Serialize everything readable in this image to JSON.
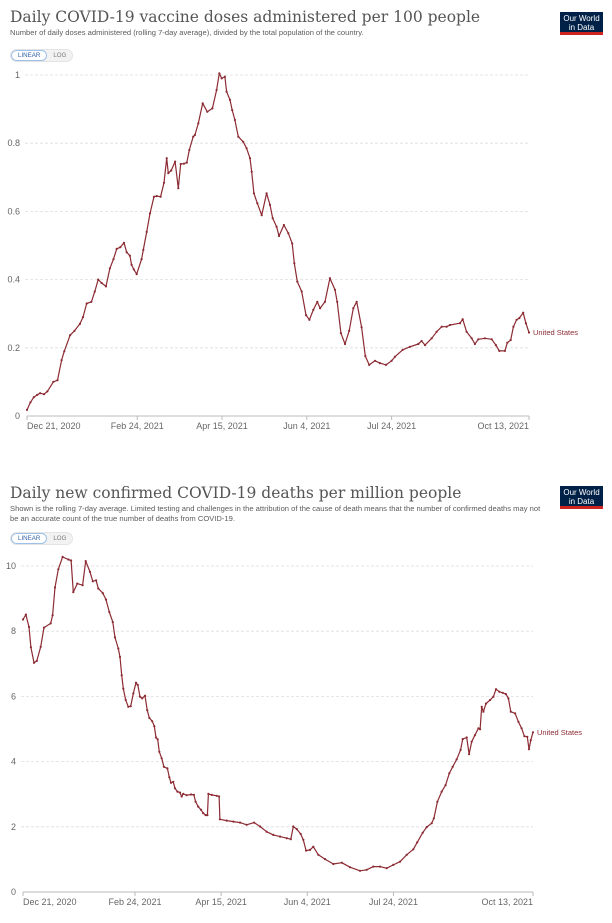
{
  "logo_text": [
    "Our World",
    "in Data"
  ],
  "toggle": {
    "linear": "LINEAR",
    "log": "LOG",
    "selected": "LINEAR"
  },
  "colors": {
    "series": "#8c2b33",
    "logo_bg": "#002147",
    "logo_stripe": "#ce261e",
    "toggle_active": "#3360a9"
  },
  "panels": [
    {
      "title": "Daily COVID-19 vaccine doses administered per 100 people",
      "subtitle": "Number of daily doses administered (rolling 7-day average), divided by the total population of the country."
    },
    {
      "title": "Daily new confirmed COVID-19 deaths per million people",
      "subtitle": "Shown is the rolling 7-day average. Limited testing and challenges in the attribution of the cause of death means that the number of confirmed deaths may not be an accurate count of the true number of deaths from COVID-19."
    }
  ],
  "chart_data": [
    {
      "type": "line",
      "title": "Daily COVID-19 vaccine doses administered per 100 people",
      "xlabel": "",
      "ylabel": "",
      "x_unit": "days since Dec 21, 2020",
      "x_range": [
        0,
        296
      ],
      "ylim": [
        0,
        1
      ],
      "yticks": [
        0,
        0.2,
        0.4,
        0.6,
        0.8,
        1
      ],
      "ytick_labels": [
        "0",
        "0.2",
        "0.4",
        "0.6",
        "0.8",
        "1"
      ],
      "xticks": [
        0,
        65,
        115,
        165,
        215,
        296
      ],
      "xtick_labels": [
        "Dec 21, 2020",
        "Feb 24, 2021",
        "Apr 15, 2021",
        "Jun 4, 2021",
        "Jul 24, 2021",
        "Oct 13, 2021"
      ],
      "grid": true,
      "legend": "end-of-line label",
      "series": [
        {
          "name": "United States",
          "x": [
            0,
            2,
            4,
            6,
            7.7,
            10,
            12,
            15.5,
            18,
            20.4,
            22,
            25.4,
            28,
            31.2,
            33,
            35.2,
            38,
            40,
            42,
            44,
            46.6,
            48.9,
            51,
            52.9,
            55,
            57.2,
            58.8,
            60.7,
            61.7,
            63,
            64.7,
            67.6,
            68.6,
            70.6,
            72.5,
            74.9,
            76.5,
            78.8,
            80.8,
            82.4,
            83.3,
            85,
            87.3,
            89.2,
            90.6,
            92.5,
            94.2,
            95.7,
            98,
            99,
            101,
            103.6,
            106.3,
            109.3,
            111.8,
            113.4,
            114.8,
            116.7,
            117.7,
            119.7,
            121,
            122.6,
            124.6,
            127.5,
            129.5,
            131.5,
            132.5,
            133.8,
            135.8,
            138.4,
            141.3,
            143.3,
            144.9,
            147.2,
            148.6,
            151.5,
            154.1,
            156.4,
            157.6,
            159.4,
            162,
            164.5,
            166.5,
            168.8,
            171.2,
            172.8,
            175.7,
            178.6,
            181.6,
            182.9,
            185.1,
            187.5,
            190,
            192.4,
            194.4,
            197.3,
            199.5,
            201.8,
            205.2,
            208.1,
            211.7,
            215,
            217,
            221.5,
            225.8,
            230.7,
            232.7,
            234.7,
            238.6,
            241.5,
            244.5,
            247.4,
            249.4,
            255.3,
            256.9,
            259.2,
            262.2,
            264.1,
            266.1,
            270,
            274,
            276.5,
            278.5,
            281.8,
            283.2,
            285.2,
            286.8,
            288.7,
            290.3,
            292.6,
            294.2,
            296
          ],
          "y": [
            0.018,
            0.04,
            0.055,
            0.062,
            0.067,
            0.064,
            0.072,
            0.1,
            0.105,
            0.164,
            0.19,
            0.237,
            0.25,
            0.27,
            0.29,
            0.33,
            0.335,
            0.365,
            0.4,
            0.39,
            0.38,
            0.433,
            0.46,
            0.49,
            0.495,
            0.508,
            0.48,
            0.47,
            0.443,
            0.43,
            0.416,
            0.46,
            0.487,
            0.54,
            0.594,
            0.643,
            0.645,
            0.643,
            0.684,
            0.756,
            0.712,
            0.72,
            0.746,
            0.668,
            0.739,
            0.74,
            0.743,
            0.78,
            0.819,
            0.824,
            0.858,
            0.917,
            0.892,
            0.902,
            0.956,
            1.005,
            0.99,
            0.995,
            0.951,
            0.927,
            0.897,
            0.868,
            0.819,
            0.804,
            0.785,
            0.756,
            0.716,
            0.653,
            0.624,
            0.589,
            0.653,
            0.619,
            0.58,
            0.555,
            0.528,
            0.56,
            0.536,
            0.506,
            0.448,
            0.394,
            0.365,
            0.296,
            0.282,
            0.311,
            0.335,
            0.316,
            0.335,
            0.404,
            0.37,
            0.335,
            0.243,
            0.211,
            0.25,
            0.316,
            0.335,
            0.26,
            0.176,
            0.15,
            0.162,
            0.155,
            0.15,
            0.162,
            0.174,
            0.194,
            0.203,
            0.211,
            0.22,
            0.208,
            0.228,
            0.247,
            0.262,
            0.262,
            0.267,
            0.272,
            0.284,
            0.247,
            0.228,
            0.211,
            0.225,
            0.228,
            0.225,
            0.208,
            0.191,
            0.191,
            0.215,
            0.223,
            0.262,
            0.282,
            0.287,
            0.303,
            0.272,
            0.245
          ]
        }
      ]
    },
    {
      "type": "line",
      "title": "Daily new confirmed COVID-19 deaths per million people",
      "xlabel": "",
      "ylabel": "",
      "x_unit": "days since Dec 21, 2020",
      "x_range": [
        0,
        296
      ],
      "ylim": [
        0,
        10.3
      ],
      "yticks": [
        0,
        2,
        4,
        6,
        8,
        10
      ],
      "ytick_labels": [
        "0",
        "2",
        "4",
        "6",
        "8",
        "10"
      ],
      "xticks": [
        0,
        65,
        115,
        165,
        215,
        296
      ],
      "xtick_labels": [
        "Dec 21, 2020",
        "Feb 24, 2021",
        "Apr 15, 2021",
        "Jun 4, 2021",
        "Jul 24, 2021",
        "Oct 13, 2021"
      ],
      "grid": true,
      "legend": "end-of-line label",
      "series": [
        {
          "name": "United States",
          "x": [
            0,
            1.7,
            3.5,
            4.6,
            6.4,
            8,
            10.3,
            12.2,
            16.1,
            17.2,
            18.6,
            20.5,
            23,
            26.3,
            27.9,
            29.2,
            31.5,
            34.6,
            36.4,
            38.9,
            40.5,
            42.4,
            43.7,
            46.3,
            48.2,
            50.1,
            52.1,
            53.4,
            55.3,
            56.3,
            57.3,
            58.2,
            59.6,
            61.1,
            62.5,
            64,
            65.6,
            66.6,
            67.9,
            69.2,
            70.8,
            72.1,
            73.3,
            75,
            76.2,
            77.2,
            78.2,
            79.1,
            80.5,
            81.8,
            83.8,
            84.9,
            85.9,
            87.2,
            88.2,
            89.6,
            91.1,
            92.1,
            93,
            95,
            97.5,
            99.2,
            100.2,
            101.7,
            103.3,
            104.6,
            106,
            107,
            107.6,
            109.5,
            112.4,
            113.8,
            114.3,
            118.2,
            122.1,
            126,
            129.8,
            134.1,
            137.6,
            141.4,
            145.3,
            149.2,
            153.1,
            155.4,
            156.9,
            158.9,
            161.2,
            162.7,
            164.3,
            166.6,
            168.5,
            171.4,
            175.3,
            180.1,
            185,
            189.8,
            195.6,
            199.5,
            203.3,
            207.2,
            211.1,
            214.9,
            218.8,
            222.7,
            226.5,
            228.8,
            232,
            234.3,
            237.2,
            238.5,
            240.5,
            243,
            245.3,
            247.4,
            249.4,
            251.7,
            254,
            255.2,
            257.5,
            258.9,
            260.4,
            262.3,
            264.3,
            265.3,
            266.2,
            267.2,
            268.7,
            271.1,
            273,
            274.5,
            276.5,
            278.4,
            280.3,
            281.7,
            283.1,
            285.6,
            287.5,
            289.4,
            291,
            292.7,
            293.7,
            294.7,
            296
          ],
          "y": [
            8.36,
            8.51,
            8.13,
            7.51,
            7.03,
            7.09,
            7.52,
            8.11,
            8.24,
            8.49,
            9.34,
            9.9,
            10.28,
            10.2,
            10.17,
            9.2,
            9.46,
            9.41,
            10.15,
            9.82,
            9.53,
            9.56,
            9.31,
            9.17,
            8.97,
            8.59,
            8.28,
            7.81,
            7.47,
            7.21,
            6.65,
            6.24,
            5.89,
            5.68,
            5.7,
            6.09,
            6.42,
            6.35,
            5.99,
            5.94,
            6.02,
            5.58,
            5.34,
            5.24,
            5.09,
            4.74,
            4.68,
            4.3,
            4.1,
            3.84,
            3.79,
            3.52,
            3.35,
            3.38,
            3.18,
            3.08,
            3.05,
            2.93,
            3.01,
            2.97,
            2.99,
            2.98,
            2.77,
            2.62,
            2.52,
            2.42,
            2.36,
            2.36,
            3.01,
            2.98,
            2.95,
            2.93,
            2.23,
            2.19,
            2.16,
            2.13,
            2.06,
            2.13,
            2.01,
            1.85,
            1.75,
            1.7,
            1.65,
            1.62,
            2.01,
            1.93,
            1.78,
            1.6,
            1.27,
            1.29,
            1.39,
            1.14,
            1.01,
            0.86,
            0.9,
            0.76,
            0.65,
            0.68,
            0.78,
            0.78,
            0.73,
            0.83,
            0.93,
            1.14,
            1.31,
            1.52,
            1.82,
            1.99,
            2.11,
            2.26,
            2.77,
            3.08,
            3.28,
            3.64,
            3.84,
            4.07,
            4.36,
            4.69,
            4.74,
            4.23,
            4.61,
            4.81,
            5.02,
            4.99,
            5.68,
            5.53,
            5.78,
            5.89,
            5.99,
            6.22,
            6.14,
            6.11,
            6.07,
            5.94,
            5.53,
            5.48,
            5.22,
            5.02,
            4.78,
            4.76,
            4.38,
            4.66,
            4.9
          ]
        }
      ]
    }
  ]
}
